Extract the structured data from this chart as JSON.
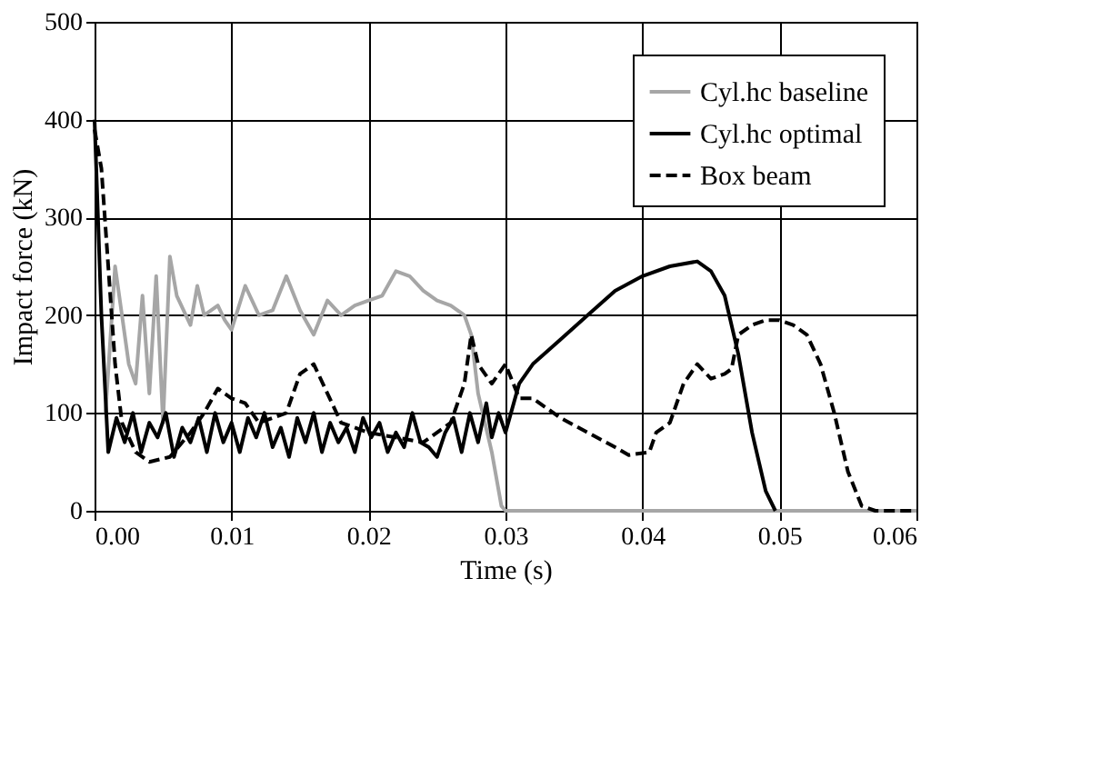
{
  "chart_data": {
    "type": "line",
    "xlabel": "Time (s)",
    "ylabel": "Impact force (kN)",
    "xlim": [
      0,
      0.06
    ],
    "ylim": [
      0,
      500
    ],
    "xticks": [
      {
        "value": 0,
        "label": "0.00"
      },
      {
        "value": 0.01,
        "label": "0.01"
      },
      {
        "value": 0.02,
        "label": "0.02"
      },
      {
        "value": 0.03,
        "label": "0.03"
      },
      {
        "value": 0.04,
        "label": "0.04"
      },
      {
        "value": 0.05,
        "label": "0.05"
      },
      {
        "value": 0.06,
        "label": "0.06"
      }
    ],
    "yticks": [
      0,
      100,
      200,
      300,
      400,
      500
    ],
    "grid": true,
    "legend": "top right",
    "marker": "none",
    "series": [
      {
        "name": "Cyl.hc baseline",
        "color": "#a6a6a6",
        "line_style": "solid",
        "x": [
          0.0008,
          0.0015,
          0.002,
          0.0025,
          0.003,
          0.0035,
          0.004,
          0.0045,
          0.005,
          0.0055,
          0.006,
          0.007,
          0.0075,
          0.008,
          0.009,
          0.0095,
          0.01,
          0.011,
          0.012,
          0.013,
          0.014,
          0.015,
          0.016,
          0.017,
          0.018,
          0.019,
          0.02,
          0.021,
          0.022,
          0.023,
          0.024,
          0.025,
          0.026,
          0.027,
          0.0275,
          0.028,
          0.029,
          0.0297,
          0.03,
          0.06
        ],
        "values": [
          100,
          250,
          200,
          150,
          130,
          220,
          120,
          240,
          90,
          260,
          220,
          190,
          230,
          200,
          210,
          195,
          185,
          230,
          200,
          205,
          240,
          205,
          180,
          215,
          200,
          210,
          215,
          220,
          245,
          240,
          225,
          215,
          210,
          200,
          180,
          120,
          60,
          5,
          0,
          0
        ]
      },
      {
        "name": "Cyl.hc optimal",
        "color": "#000000",
        "line_style": "solid",
        "x": [
          0,
          0.0005,
          0.001,
          0.0016,
          0.0022,
          0.0028,
          0.0034,
          0.004,
          0.0046,
          0.0052,
          0.0058,
          0.0064,
          0.007,
          0.0076,
          0.0082,
          0.0088,
          0.0094,
          0.01,
          0.0106,
          0.0112,
          0.0118,
          0.0124,
          0.013,
          0.0136,
          0.0142,
          0.0148,
          0.0154,
          0.016,
          0.0166,
          0.0172,
          0.0178,
          0.0184,
          0.019,
          0.0196,
          0.0202,
          0.0208,
          0.0214,
          0.022,
          0.0226,
          0.0232,
          0.0238,
          0.0244,
          0.025,
          0.0256,
          0.0262,
          0.0268,
          0.0274,
          0.028,
          0.0286,
          0.029,
          0.0295,
          0.03,
          0.031,
          0.032,
          0.034,
          0.036,
          0.038,
          0.04,
          0.042,
          0.044,
          0.045,
          0.046,
          0.047,
          0.048,
          0.049,
          0.0497
        ],
        "values": [
          400,
          200,
          60,
          95,
          70,
          100,
          60,
          90,
          75,
          100,
          55,
          85,
          70,
          95,
          60,
          100,
          70,
          90,
          60,
          95,
          75,
          100,
          65,
          85,
          55,
          95,
          70,
          100,
          60,
          90,
          70,
          85,
          60,
          95,
          75,
          90,
          60,
          80,
          65,
          100,
          70,
          65,
          55,
          80,
          95,
          60,
          100,
          70,
          110,
          75,
          100,
          80,
          130,
          150,
          175,
          200,
          225,
          240,
          250,
          255,
          245,
          220,
          160,
          80,
          20,
          0
        ]
      },
      {
        "name": "Box beam",
        "color": "#000000",
        "line_style": "dashed",
        "x": [
          0,
          0.0005,
          0.001,
          0.0015,
          0.002,
          0.003,
          0.004,
          0.0055,
          0.007,
          0.008,
          0.009,
          0.01,
          0.011,
          0.012,
          0.014,
          0.015,
          0.016,
          0.017,
          0.018,
          0.02,
          0.022,
          0.024,
          0.026,
          0.027,
          0.0275,
          0.028,
          0.029,
          0.03,
          0.031,
          0.032,
          0.034,
          0.036,
          0.038,
          0.039,
          0.0405,
          0.041,
          0.042,
          0.043,
          0.044,
          0.045,
          0.046,
          0.0465,
          0.047,
          0.048,
          0.049,
          0.05,
          0.051,
          0.052,
          0.053,
          0.054,
          0.055,
          0.056,
          0.057,
          0.06
        ],
        "values": [
          390,
          350,
          250,
          150,
          90,
          60,
          50,
          55,
          80,
          100,
          125,
          115,
          110,
          90,
          100,
          140,
          150,
          120,
          90,
          80,
          75,
          70,
          90,
          130,
          180,
          150,
          130,
          150,
          115,
          115,
          95,
          80,
          65,
          57,
          60,
          80,
          90,
          130,
          150,
          135,
          140,
          145,
          180,
          190,
          195,
          195,
          190,
          180,
          150,
          100,
          40,
          5,
          0,
          0
        ]
      }
    ]
  }
}
